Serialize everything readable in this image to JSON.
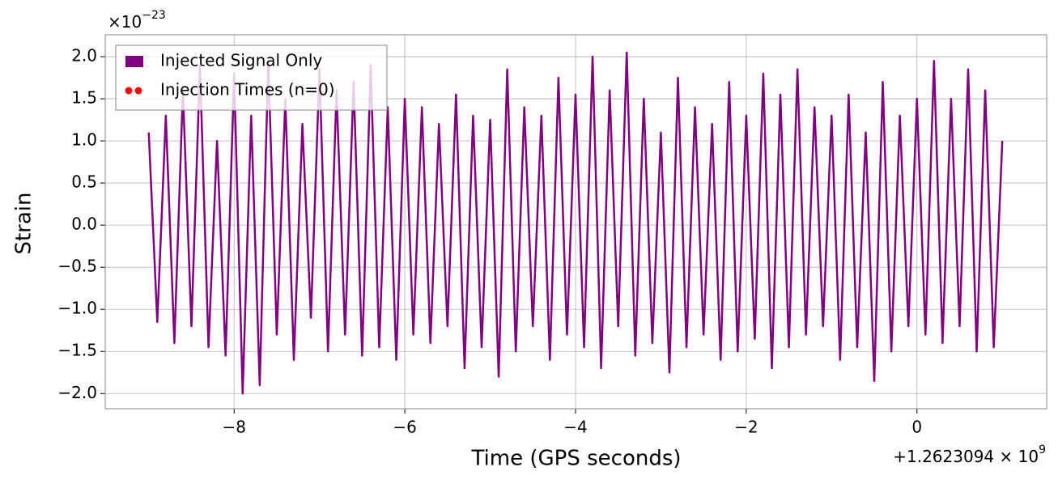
{
  "chart_data": {
    "type": "line",
    "x_label": "Time (GPS seconds)",
    "y_label": "Strain",
    "x_offset_label": {
      "base": "+1.2623094 × 10",
      "exponent": "9"
    },
    "y_offset_label": {
      "base": "×10",
      "exponent": "−23"
    },
    "xlim": [
      -9.51,
      1.52
    ],
    "ylim": [
      -2.18,
      2.26
    ],
    "xticks": [
      {
        "value": -8,
        "label": "−8"
      },
      {
        "value": -6,
        "label": "−6"
      },
      {
        "value": -4,
        "label": "−4"
      },
      {
        "value": -2,
        "label": "−2"
      },
      0
    ],
    "yticks": [
      {
        "value": -2.0,
        "label": "−2.0"
      },
      {
        "value": -1.5,
        "label": "−1.5"
      },
      {
        "value": -1.0,
        "label": "−1.0"
      },
      {
        "value": -0.5,
        "label": "−0.5"
      },
      {
        "value": 0,
        "label": "0.0"
      },
      0.5,
      {
        "value": 1.0,
        "label": "1.0"
      },
      1.5,
      {
        "value": 2.0,
        "label": "2.0"
      }
    ],
    "grid": true,
    "legend": "upper left",
    "x": [
      -9.0,
      -8.9,
      -8.8,
      -8.7,
      -8.6,
      -8.5,
      -8.4,
      -8.3,
      -8.2,
      -8.1,
      -8.0,
      -7.9,
      -7.8,
      -7.7,
      -7.6,
      -7.5,
      -7.4,
      -7.3,
      -7.2,
      -7.1,
      -7.0,
      -6.9,
      -6.8,
      -6.7,
      -6.6,
      -6.5,
      -6.4,
      -6.3,
      -6.2,
      -6.1,
      -6.0,
      -5.9,
      -5.8,
      -5.7,
      -5.6,
      -5.5,
      -5.4,
      -5.3,
      -5.2,
      -5.1,
      -5.0,
      -4.9,
      -4.8,
      -4.7,
      -4.6,
      -4.5,
      -4.4,
      -4.3,
      -4.2,
      -4.1,
      -4.0,
      -3.9,
      -3.8,
      -3.7,
      -3.6,
      -3.5,
      -3.4,
      -3.3,
      -3.2,
      -3.1,
      -3.0,
      -2.9,
      -2.8,
      -2.7,
      -2.6,
      -2.5,
      -2.4,
      -2.3,
      -2.2,
      -2.1,
      -2.0,
      -1.9,
      -1.8,
      -1.7,
      -1.6,
      -1.5,
      -1.4,
      -1.3,
      -1.2,
      -1.1,
      -1.0,
      -0.9,
      -0.8,
      -0.7,
      -0.6,
      -0.5,
      -0.4,
      -0.3,
      -0.2,
      -0.1,
      0.0,
      0.1,
      0.2,
      0.3,
      0.4,
      0.5,
      0.6,
      0.7,
      0.8,
      0.9,
      1.0
    ],
    "series": [
      {
        "name": "Injected Signal Only",
        "color": "#800080",
        "values": [
          1.1,
          -1.15,
          1.3,
          -1.4,
          1.6,
          -1.2,
          1.9,
          -1.45,
          1.0,
          -1.55,
          1.8,
          -2.0,
          1.3,
          -1.9,
          1.95,
          -1.3,
          1.5,
          -1.6,
          1.2,
          -1.1,
          1.85,
          -1.5,
          1.6,
          -1.3,
          1.7,
          -1.55,
          1.9,
          -1.45,
          1.4,
          -1.6,
          1.5,
          -1.3,
          1.4,
          -1.4,
          1.2,
          -1.2,
          1.55,
          -1.7,
          1.3,
          -1.45,
          1.25,
          -1.8,
          1.85,
          -1.5,
          1.4,
          -1.2,
          1.3,
          -1.6,
          1.75,
          -1.3,
          1.55,
          -1.45,
          2.0,
          -1.7,
          1.6,
          -1.2,
          2.05,
          -1.55,
          1.5,
          -1.4,
          1.1,
          -1.75,
          1.75,
          -1.45,
          1.4,
          -1.3,
          1.2,
          -1.6,
          1.7,
          -1.5,
          1.3,
          -1.35,
          1.8,
          -1.7,
          1.55,
          -1.45,
          1.85,
          -1.3,
          1.4,
          -1.2,
          1.3,
          -1.6,
          1.55,
          -1.45,
          1.1,
          -1.85,
          1.7,
          -1.5,
          1.3,
          -1.2,
          1.5,
          -1.3,
          1.95,
          -1.4,
          1.5,
          -1.2,
          1.85,
          -1.5,
          1.6,
          -1.45,
          1.0
        ]
      },
      {
        "name": "Injection Times (n=0)",
        "color": "#ff0000",
        "type": "scatter",
        "values": []
      }
    ]
  }
}
